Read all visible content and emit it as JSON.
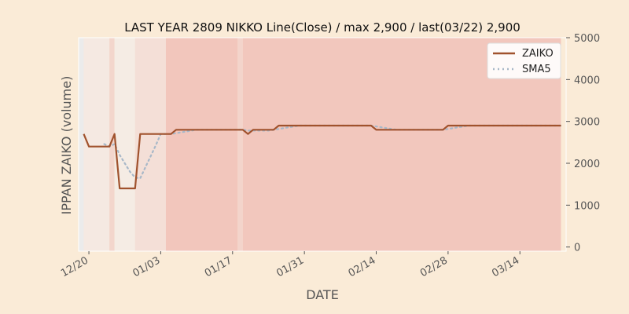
{
  "chart_data": {
    "type": "line",
    "title": "LAST YEAR 2809 NIKKO Line(Close) / max 2,900 / last(03/22) 2,900",
    "xlabel": "DATE",
    "ylabel": "IPPAN ZAIKO (volume)",
    "y_right_ticks": [
      0,
      1000,
      2000,
      3000,
      4000,
      5000
    ],
    "ylim": [
      -100,
      5000
    ],
    "x_ticks": [
      "12/20",
      "01/03",
      "01/17",
      "01/31",
      "02/14",
      "02/28",
      "03/14"
    ],
    "xlim": [
      "12/18",
      "03/23"
    ],
    "grid": false,
    "legend_position": "top-right",
    "series": [
      {
        "name": "ZAIKO",
        "color": "#a0522d",
        "style": "solid",
        "points": [
          [
            "12/19",
            2700
          ],
          [
            "12/20",
            2400
          ],
          [
            "12/21",
            2400
          ],
          [
            "12/22",
            2400
          ],
          [
            "12/23",
            2400
          ],
          [
            "12/24",
            2400
          ],
          [
            "12/25",
            2700
          ],
          [
            "12/26",
            1400
          ],
          [
            "12/27",
            1400
          ],
          [
            "12/28",
            1400
          ],
          [
            "12/29",
            1400
          ],
          [
            "12/30",
            2700
          ],
          [
            "12/31",
            2700
          ],
          [
            "01/01",
            2700
          ],
          [
            "01/02",
            2700
          ],
          [
            "01/03",
            2700
          ],
          [
            "01/04",
            2700
          ],
          [
            "01/05",
            2700
          ],
          [
            "01/06",
            2800
          ],
          [
            "01/07",
            2800
          ],
          [
            "01/08",
            2800
          ],
          [
            "01/09",
            2800
          ],
          [
            "01/10",
            2800
          ],
          [
            "01/11",
            2800
          ],
          [
            "01/12",
            2800
          ],
          [
            "01/13",
            2800
          ],
          [
            "01/14",
            2800
          ],
          [
            "01/15",
            2800
          ],
          [
            "01/16",
            2800
          ],
          [
            "01/17",
            2800
          ],
          [
            "01/18",
            2800
          ],
          [
            "01/19",
            2800
          ],
          [
            "01/20",
            2700
          ],
          [
            "01/21",
            2800
          ],
          [
            "01/22",
            2800
          ],
          [
            "01/23",
            2800
          ],
          [
            "01/24",
            2800
          ],
          [
            "01/25",
            2800
          ],
          [
            "01/26",
            2900
          ],
          [
            "01/27",
            2900
          ],
          [
            "01/28",
            2900
          ],
          [
            "01/29",
            2900
          ],
          [
            "01/30",
            2900
          ],
          [
            "01/31",
            2900
          ],
          [
            "02/01",
            2900
          ],
          [
            "02/02",
            2900
          ],
          [
            "02/03",
            2900
          ],
          [
            "02/04",
            2900
          ],
          [
            "02/05",
            2900
          ],
          [
            "02/06",
            2900
          ],
          [
            "02/07",
            2900
          ],
          [
            "02/08",
            2900
          ],
          [
            "02/09",
            2900
          ],
          [
            "02/10",
            2900
          ],
          [
            "02/11",
            2900
          ],
          [
            "02/12",
            2900
          ],
          [
            "02/13",
            2900
          ],
          [
            "02/14",
            2800
          ],
          [
            "02/15",
            2800
          ],
          [
            "02/16",
            2800
          ],
          [
            "02/17",
            2800
          ],
          [
            "02/18",
            2800
          ],
          [
            "02/19",
            2800
          ],
          [
            "02/20",
            2800
          ],
          [
            "02/21",
            2800
          ],
          [
            "02/22",
            2800
          ],
          [
            "02/23",
            2800
          ],
          [
            "02/24",
            2800
          ],
          [
            "02/25",
            2800
          ],
          [
            "02/26",
            2800
          ],
          [
            "02/27",
            2800
          ],
          [
            "02/28",
            2900
          ],
          [
            "03/01",
            2900
          ],
          [
            "03/02",
            2900
          ],
          [
            "03/03",
            2900
          ],
          [
            "03/04",
            2900
          ],
          [
            "03/05",
            2900
          ],
          [
            "03/06",
            2900
          ],
          [
            "03/07",
            2900
          ],
          [
            "03/08",
            2900
          ],
          [
            "03/09",
            2900
          ],
          [
            "03/10",
            2900
          ],
          [
            "03/11",
            2900
          ],
          [
            "03/12",
            2900
          ],
          [
            "03/13",
            2900
          ],
          [
            "03/14",
            2900
          ],
          [
            "03/15",
            2900
          ],
          [
            "03/16",
            2900
          ],
          [
            "03/17",
            2900
          ],
          [
            "03/18",
            2900
          ],
          [
            "03/19",
            2900
          ],
          [
            "03/20",
            2900
          ],
          [
            "03/21",
            2900
          ],
          [
            "03/22",
            2900
          ]
        ]
      },
      {
        "name": "SMA5",
        "color": "#a8b8c8",
        "style": "dotted",
        "points": [
          [
            "12/23",
            2460
          ],
          [
            "12/24",
            2400
          ],
          [
            "12/25",
            2460
          ],
          [
            "12/26",
            2200
          ],
          [
            "12/27",
            2000
          ],
          [
            "12/28",
            1800
          ],
          [
            "12/29",
            1660
          ],
          [
            "12/30",
            1640
          ],
          [
            "12/31",
            1900
          ],
          [
            "01/01",
            2160
          ],
          [
            "01/02",
            2420
          ],
          [
            "01/03",
            2700
          ],
          [
            "01/04",
            2700
          ],
          [
            "01/05",
            2700
          ],
          [
            "01/06",
            2720
          ],
          [
            "01/07",
            2740
          ],
          [
            "01/08",
            2760
          ],
          [
            "01/09",
            2780
          ],
          [
            "01/10",
            2800
          ],
          [
            "01/11",
            2800
          ],
          [
            "01/12",
            2800
          ],
          [
            "01/13",
            2800
          ],
          [
            "01/14",
            2800
          ],
          [
            "01/15",
            2800
          ],
          [
            "01/16",
            2800
          ],
          [
            "01/17",
            2800
          ],
          [
            "01/18",
            2800
          ],
          [
            "01/19",
            2800
          ],
          [
            "01/20",
            2780
          ],
          [
            "01/21",
            2780
          ],
          [
            "01/22",
            2780
          ],
          [
            "01/23",
            2780
          ],
          [
            "01/24",
            2780
          ],
          [
            "01/25",
            2800
          ],
          [
            "01/26",
            2820
          ],
          [
            "01/27",
            2840
          ],
          [
            "01/28",
            2860
          ],
          [
            "01/29",
            2880
          ],
          [
            "01/30",
            2900
          ],
          [
            "01/31",
            2900
          ],
          [
            "02/01",
            2900
          ],
          [
            "02/02",
            2900
          ],
          [
            "02/03",
            2900
          ],
          [
            "02/04",
            2900
          ],
          [
            "02/05",
            2900
          ],
          [
            "02/06",
            2900
          ],
          [
            "02/07",
            2900
          ],
          [
            "02/08",
            2900
          ],
          [
            "02/09",
            2900
          ],
          [
            "02/10",
            2900
          ],
          [
            "02/11",
            2900
          ],
          [
            "02/12",
            2900
          ],
          [
            "02/13",
            2900
          ],
          [
            "02/14",
            2880
          ],
          [
            "02/15",
            2860
          ],
          [
            "02/16",
            2840
          ],
          [
            "02/17",
            2820
          ],
          [
            "02/18",
            2800
          ],
          [
            "02/19",
            2800
          ],
          [
            "02/20",
            2800
          ],
          [
            "02/21",
            2800
          ],
          [
            "02/22",
            2800
          ],
          [
            "02/23",
            2800
          ],
          [
            "02/24",
            2800
          ],
          [
            "02/25",
            2800
          ],
          [
            "02/26",
            2800
          ],
          [
            "02/27",
            2800
          ],
          [
            "02/28",
            2820
          ],
          [
            "03/01",
            2840
          ],
          [
            "03/02",
            2860
          ],
          [
            "03/03",
            2880
          ],
          [
            "03/04",
            2900
          ],
          [
            "03/05",
            2900
          ],
          [
            "03/06",
            2900
          ],
          [
            "03/07",
            2900
          ],
          [
            "03/08",
            2900
          ],
          [
            "03/09",
            2900
          ],
          [
            "03/10",
            2900
          ],
          [
            "03/11",
            2900
          ],
          [
            "03/12",
            2900
          ],
          [
            "03/13",
            2900
          ],
          [
            "03/14",
            2900
          ],
          [
            "03/15",
            2900
          ],
          [
            "03/16",
            2900
          ],
          [
            "03/17",
            2900
          ],
          [
            "03/18",
            2900
          ],
          [
            "03/19",
            2900
          ],
          [
            "03/20",
            2900
          ],
          [
            "03/21",
            2900
          ],
          [
            "03/22",
            2900
          ]
        ]
      }
    ],
    "background_bands": [
      {
        "from": "12/18",
        "to": "12/19",
        "color": "#ebebeb"
      },
      {
        "from": "12/19",
        "to": "12/24",
        "color": "#f5e9e2"
      },
      {
        "from": "12/24",
        "to": "12/25",
        "color": "#f3d6cc"
      },
      {
        "from": "12/25",
        "to": "12/29",
        "color": "#f5ece4"
      },
      {
        "from": "12/29",
        "to": "01/04",
        "color": "#f4dfd7"
      },
      {
        "from": "01/04",
        "to": "01/18",
        "color": "#f2c6bc"
      },
      {
        "from": "01/18",
        "to": "01/19",
        "color": "#f3d4cb"
      },
      {
        "from": "01/19",
        "to": "03/22",
        "color": "#f2c7bd"
      }
    ]
  }
}
